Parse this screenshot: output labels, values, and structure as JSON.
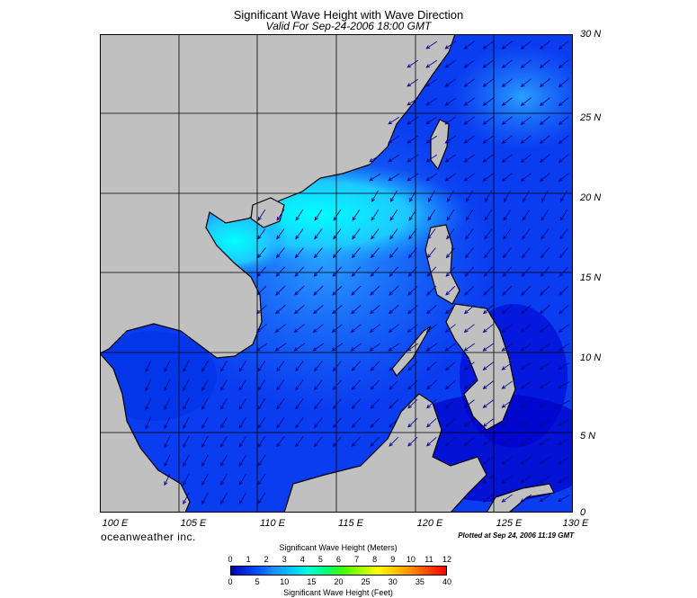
{
  "header": {
    "title": "Significant Wave Height with Wave Direction",
    "subtitle": "Valid For Sep-24-2006 18:00 GMT"
  },
  "map": {
    "lat_labels": [
      "30 N",
      "25 N",
      "20 N",
      "15 N",
      "10 N",
      "5 N",
      "0"
    ],
    "lon_labels": [
      "100 E",
      "105 E",
      "110 E",
      "115 E",
      "120 E",
      "125 E",
      "130 E"
    ],
    "lat_range": [
      0,
      30
    ],
    "lon_range": [
      100,
      130
    ],
    "grid": true,
    "colors": {
      "land": "#c0c0c0",
      "coast": "#000000",
      "grid": "#000000",
      "arrow": "#0a0a8c",
      "wave_low": "#0000c8",
      "wave_mid": "#1e90ff",
      "wave_high": "#00ffff"
    }
  },
  "footer": {
    "brand": "oceanweather inc.",
    "plotted": "Plotted at Sep 24, 2006 11:19 GMT"
  },
  "colorbar": {
    "meters_title": "Significant Wave Height (Meters)",
    "feet_title": "Significant Wave Height (Feet)",
    "meters_ticks": [
      "0",
      "1",
      "2",
      "3",
      "4",
      "5",
      "6",
      "7",
      "8",
      "9",
      "10",
      "11",
      "12"
    ],
    "feet_ticks": [
      "0",
      "5",
      "10",
      "15",
      "20",
      "25",
      "30",
      "35",
      "40"
    ]
  }
}
